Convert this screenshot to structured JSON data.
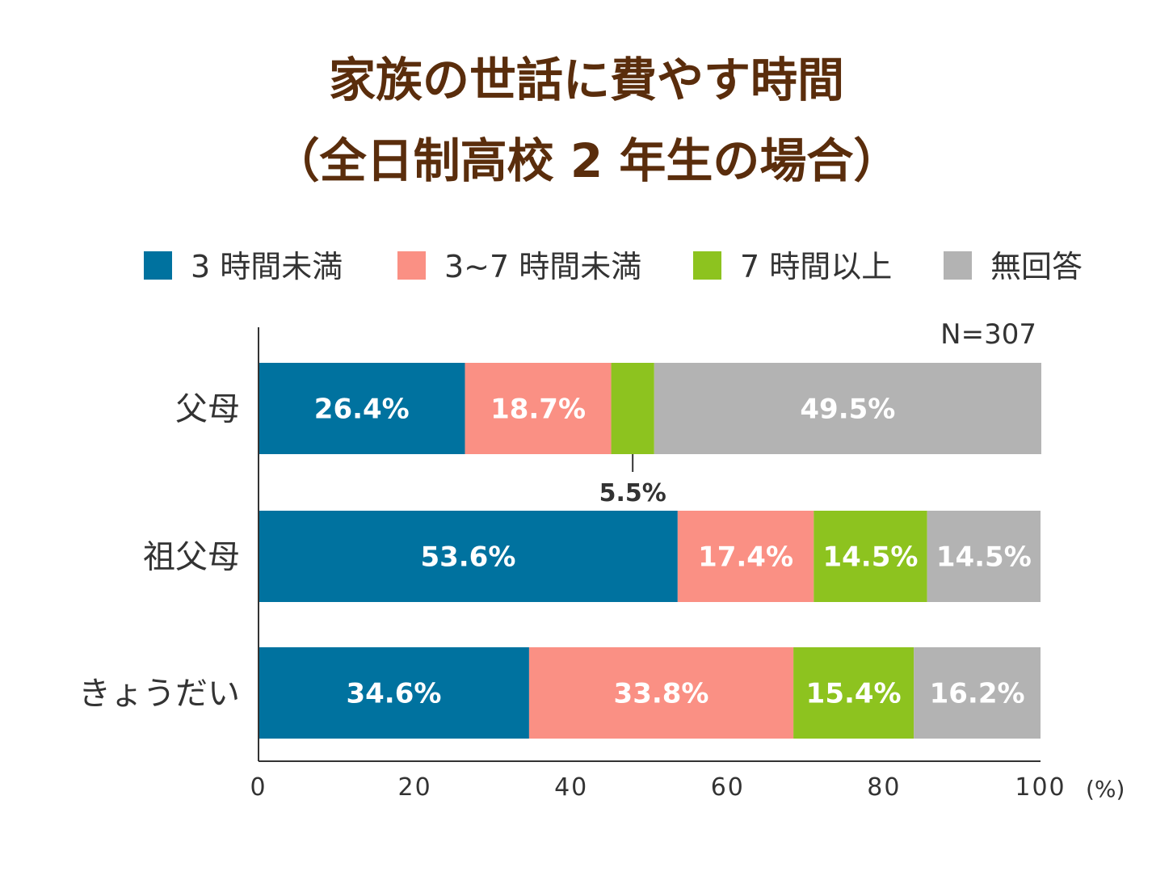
{
  "title_line1": "家族の世話に費やす時間",
  "title_line2": "（全日制高校 2 年生の場合）",
  "sample_size": "N=307",
  "x_unit": "(%)",
  "chart_data": {
    "type": "bar",
    "orientation": "horizontal",
    "stacked": true,
    "categories": [
      "父母",
      "祖父母",
      "きょうだい"
    ],
    "series": [
      {
        "name": "3 時間未満",
        "color": "#00729f",
        "values": [
          26.4,
          53.6,
          34.6
        ],
        "labels": [
          "26.4%",
          "53.6%",
          "34.6%"
        ]
      },
      {
        "name": "3~7 時間未満",
        "color": "#fa9084",
        "values": [
          18.7,
          17.4,
          33.8
        ],
        "labels": [
          "18.7%",
          "17.4%",
          "33.8%"
        ]
      },
      {
        "name": "7 時間以上",
        "color": "#8dc31f",
        "values": [
          5.5,
          14.5,
          15.4
        ],
        "labels": [
          "",
          "14.5%",
          "15.4%"
        ]
      },
      {
        "name": "無回答",
        "color": "#b3b3b3",
        "values": [
          49.5,
          14.5,
          16.2
        ],
        "labels": [
          "49.5%",
          "14.5%",
          "16.2%"
        ]
      }
    ],
    "callouts": [
      {
        "category": "父母",
        "series": "7 時間以上",
        "label": "5.5%"
      }
    ],
    "xlim": [
      0,
      100
    ],
    "xticks": [
      "0",
      "20",
      "40",
      "60",
      "80",
      "100"
    ],
    "legend_position": "top",
    "grid": false
  }
}
